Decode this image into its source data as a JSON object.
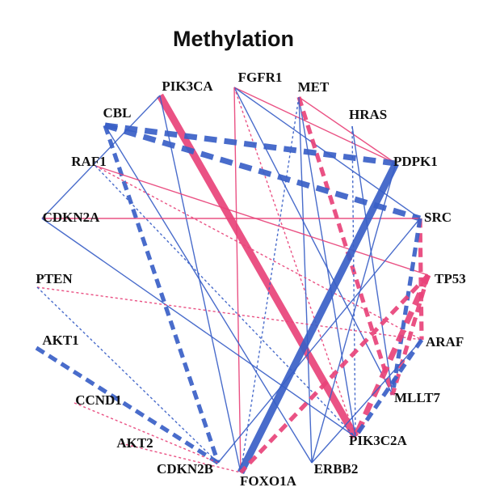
{
  "title": "Methylation",
  "colors": {
    "positive": "#e8437a",
    "negative": "#3a5fc7"
  },
  "nodes": [
    {
      "id": "PIK3CA",
      "label": "PIK3CA"
    },
    {
      "id": "FGFR1",
      "label": "FGFR1"
    },
    {
      "id": "MET",
      "label": "MET"
    },
    {
      "id": "HRAS",
      "label": "HRAS"
    },
    {
      "id": "CBL",
      "label": "CBL"
    },
    {
      "id": "PDPK1",
      "label": "PDPK1"
    },
    {
      "id": "RAF1",
      "label": "RAF1"
    },
    {
      "id": "SRC",
      "label": "SRC"
    },
    {
      "id": "CDKN2A",
      "label": "CDKN2A"
    },
    {
      "id": "TP53",
      "label": "TP53"
    },
    {
      "id": "PTEN",
      "label": "PTEN"
    },
    {
      "id": "AKT1",
      "label": "AKT1"
    },
    {
      "id": "ARAF",
      "label": "ARAF"
    },
    {
      "id": "CCND1",
      "label": "CCND1"
    },
    {
      "id": "MLLT7",
      "label": "MLLT7"
    },
    {
      "id": "AKT2",
      "label": "AKT2"
    },
    {
      "id": "PIK3C2A",
      "label": "PIK3C2A"
    },
    {
      "id": "CDKN2B",
      "label": "CDKN2B"
    },
    {
      "id": "ERBB2",
      "label": "ERBB2"
    },
    {
      "id": "FOXO1A",
      "label": "FOXO1A"
    }
  ],
  "edges": [
    {
      "from": "PIK3CA",
      "to": "PIK3C2A",
      "sign": "positive",
      "style": "solid",
      "weight": 5
    },
    {
      "from": "PIK3CA",
      "to": "FOXO1A",
      "sign": "negative",
      "style": "solid",
      "weight": 1
    },
    {
      "from": "PIK3CA",
      "to": "CDKN2A",
      "sign": "negative",
      "style": "solid",
      "weight": 1
    },
    {
      "from": "FGFR1",
      "to": "PDPK1",
      "sign": "positive",
      "style": "solid",
      "weight": 1
    },
    {
      "from": "FGFR1",
      "to": "FOXO1A",
      "sign": "positive",
      "style": "solid",
      "weight": 1
    },
    {
      "from": "FGFR1",
      "to": "MLLT7",
      "sign": "negative",
      "style": "solid",
      "weight": 1
    },
    {
      "from": "FGFR1",
      "to": "SRC",
      "sign": "negative",
      "style": "solid",
      "weight": 1
    },
    {
      "from": "FGFR1",
      "to": "PIK3C2A",
      "sign": "positive",
      "style": "dashed",
      "weight": 1
    },
    {
      "from": "MET",
      "to": "PDPK1",
      "sign": "positive",
      "style": "solid",
      "weight": 1
    },
    {
      "from": "MET",
      "to": "FOXO1A",
      "sign": "negative",
      "style": "dashed",
      "weight": 1
    },
    {
      "from": "MET",
      "to": "PIK3C2A",
      "sign": "negative",
      "style": "solid",
      "weight": 1
    },
    {
      "from": "MET",
      "to": "MLLT7",
      "sign": "positive",
      "style": "dashed",
      "weight": 3
    },
    {
      "from": "MET",
      "to": "ERBB2",
      "sign": "negative",
      "style": "solid",
      "weight": 1
    },
    {
      "from": "HRAS",
      "to": "MLLT7",
      "sign": "negative",
      "style": "solid",
      "weight": 1
    },
    {
      "from": "HRAS",
      "to": "PIK3C2A",
      "sign": "negative",
      "style": "dashed",
      "weight": 1
    },
    {
      "from": "CBL",
      "to": "PDPK1",
      "sign": "negative",
      "style": "dashed",
      "weight": 4
    },
    {
      "from": "CBL",
      "to": "ERBB2",
      "sign": "negative",
      "style": "solid",
      "weight": 1
    },
    {
      "from": "CBL",
      "to": "CDKN2B",
      "sign": "negative",
      "style": "dashed",
      "weight": 3
    },
    {
      "from": "CBL",
      "to": "SRC",
      "sign": "negative",
      "style": "dashed",
      "weight": 4
    },
    {
      "from": "RAF1",
      "to": "TP53",
      "sign": "positive",
      "style": "solid",
      "weight": 1
    },
    {
      "from": "RAF1",
      "to": "ARAF",
      "sign": "positive",
      "style": "dashed",
      "weight": 1
    },
    {
      "from": "RAF1",
      "to": "PIK3C2A",
      "sign": "negative",
      "style": "dashed",
      "weight": 1
    },
    {
      "from": "CDKN2A",
      "to": "SRC",
      "sign": "positive",
      "style": "solid",
      "weight": 1
    },
    {
      "from": "CDKN2A",
      "to": "PIK3C2A",
      "sign": "negative",
      "style": "solid",
      "weight": 1
    },
    {
      "from": "PTEN",
      "to": "ARAF",
      "sign": "positive",
      "style": "dashed",
      "weight": 1
    },
    {
      "from": "PTEN",
      "to": "CDKN2B",
      "sign": "negative",
      "style": "dashed",
      "weight": 1
    },
    {
      "from": "AKT1",
      "to": "CDKN2B",
      "sign": "negative",
      "style": "dashed",
      "weight": 3
    },
    {
      "from": "CCND1",
      "to": "CDKN2B",
      "sign": "positive",
      "style": "dashed",
      "weight": 1
    },
    {
      "from": "AKT2",
      "to": "FOXO1A",
      "sign": "positive",
      "style": "dashed",
      "weight": 1
    },
    {
      "from": "PDPK1",
      "to": "FOXO1A",
      "sign": "negative",
      "style": "solid",
      "weight": 5
    },
    {
      "from": "PDPK1",
      "to": "ERBB2",
      "sign": "negative",
      "style": "solid",
      "weight": 1
    },
    {
      "from": "SRC",
      "to": "ARAF",
      "sign": "positive",
      "style": "dashed",
      "weight": 3
    },
    {
      "from": "SRC",
      "to": "CDKN2B",
      "sign": "negative",
      "style": "solid",
      "weight": 1
    },
    {
      "from": "SRC",
      "to": "MLLT7",
      "sign": "negative",
      "style": "dashed",
      "weight": 3
    },
    {
      "from": "TP53",
      "to": "FOXO1A",
      "sign": "positive",
      "style": "dashed",
      "weight": 3
    },
    {
      "from": "TP53",
      "to": "MLLT7",
      "sign": "positive",
      "style": "dashed",
      "weight": 3
    },
    {
      "from": "TP53",
      "to": "PIK3C2A",
      "sign": "positive",
      "style": "dashed",
      "weight": 4
    },
    {
      "from": "ARAF",
      "to": "ERBB2",
      "sign": "negative",
      "style": "solid",
      "weight": 1
    },
    {
      "from": "ARAF",
      "to": "PIK3C2A",
      "sign": "negative",
      "style": "dashed",
      "weight": 3
    }
  ]
}
